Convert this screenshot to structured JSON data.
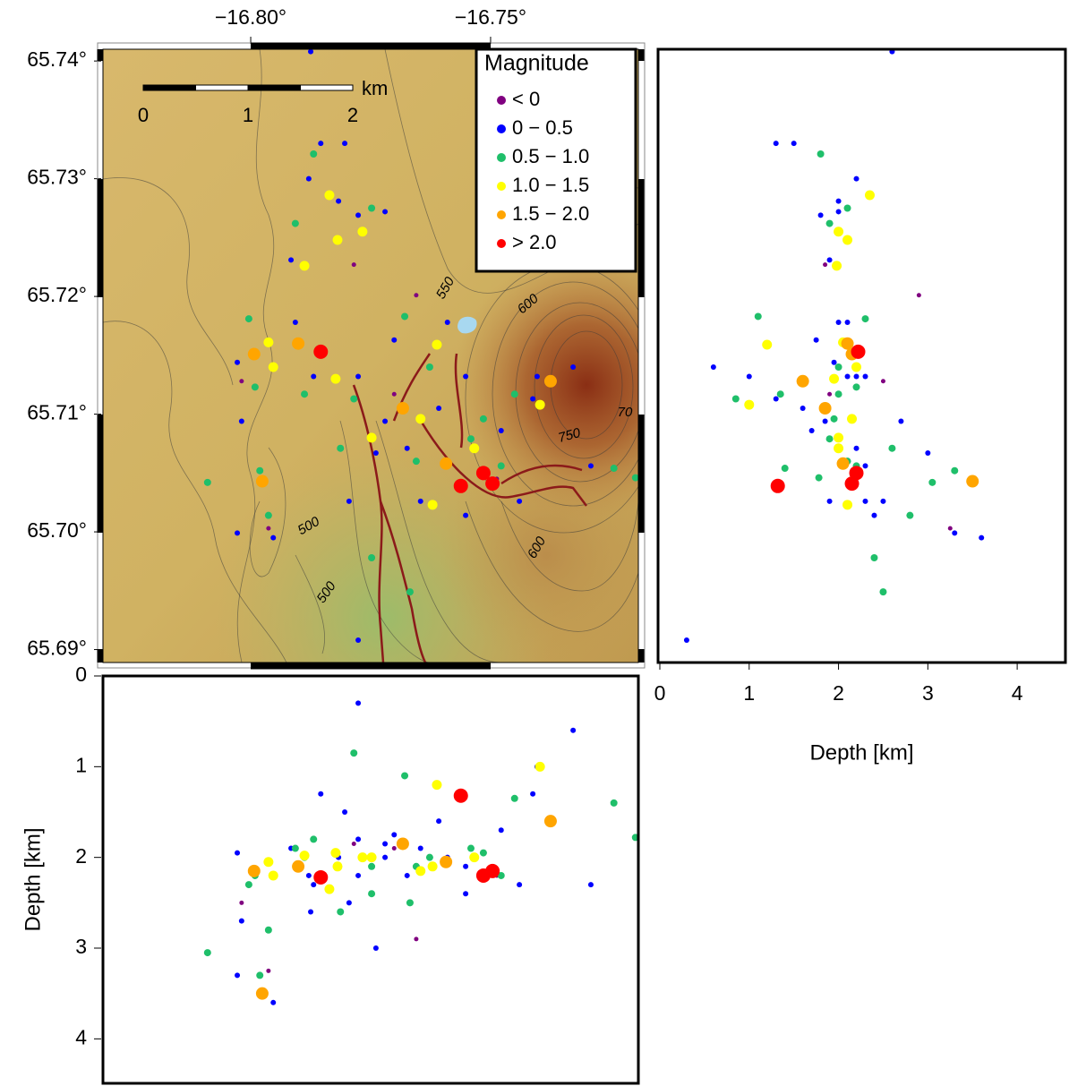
{
  "chart_data": [
    {
      "type": "scatter",
      "xlim": [
        -16.8308,
        -16.7192
      ],
      "ylim": [
        65.6889,
        65.741
      ],
      "xticks": [
        {
          "value": -16.8,
          "label": "−16.80°"
        },
        {
          "value": -16.75,
          "label": "−16.75°"
        }
      ],
      "yticks": [
        {
          "value": 65.69,
          "label": "65.69°"
        },
        {
          "value": 65.7,
          "label": "65.70°"
        },
        {
          "value": 65.71,
          "label": "65.71°"
        },
        {
          "value": 65.72,
          "label": "65.72°"
        },
        {
          "value": 65.73,
          "label": "65.73°"
        },
        {
          "value": 65.74,
          "label": "65.74°"
        }
      ],
      "legend": {
        "title": "Magnitude",
        "position": "top-right"
      },
      "scale_bar": {
        "labels": [
          "0",
          "1",
          "2"
        ],
        "unit": "km"
      },
      "contour_labels": [
        "550",
        "600",
        "500",
        "750",
        "70",
        "600",
        "500"
      ],
      "series": [
        {
          "name": "< 0",
          "color": "#800080",
          "x": [
            -16.7785,
            -16.7655,
            -16.8019,
            -16.7487,
            -16.7701,
            -16.7963
          ],
          "values": [
            65.7227,
            65.7201,
            65.7128,
            65.7045,
            65.7117,
            65.7003
          ]
        },
        {
          "name": "0 − 0.5",
          "color": "#0000ff",
          "x": [
            -16.7875,
            -16.7854,
            -16.7879,
            -16.7916,
            -16.7776,
            -16.772,
            -16.8028,
            -16.8019,
            -16.8028,
            -16.7953,
            -16.7907,
            -16.7776,
            -16.772,
            -16.7701,
            -16.759,
            -16.7552,
            -16.7478,
            -16.7403,
            -16.7328,
            -16.7291,
            -16.7646,
            -16.7552,
            -16.744,
            -16.7776,
            -16.7795,
            -16.7804,
            -16.7412,
            -16.7608,
            -16.7674,
            -16.7869,
            -16.7817,
            -16.7739
          ],
          "values": [
            65.7408,
            65.733,
            65.73,
            65.7231,
            65.7269,
            65.7272,
            65.7144,
            65.7094,
            65.6999,
            65.6995,
            65.7178,
            65.7132,
            65.7094,
            65.7163,
            65.7178,
            65.7132,
            65.7086,
            65.7132,
            65.714,
            65.7056,
            65.7026,
            65.7014,
            65.7026,
            65.6908,
            65.7026,
            65.733,
            65.7113,
            65.7105,
            65.7071,
            65.7132,
            65.7281,
            65.7067
          ]
        },
        {
          "name": "0.5 − 1.0",
          "color": "#1fbf6a",
          "x": [
            -16.7869,
            -16.7907,
            -16.7748,
            -16.8004,
            -16.7991,
            -16.7888,
            -16.7679,
            -16.7627,
            -16.7515,
            -16.7655,
            -16.7478,
            -16.7541,
            -16.7981,
            -16.7963,
            -16.809,
            -16.7748,
            -16.7668,
            -16.7243,
            -16.7198,
            -16.745,
            -16.7785,
            -16.7813
          ],
          "values": [
            65.7321,
            65.7262,
            65.7275,
            65.7181,
            65.7123,
            65.7117,
            65.7183,
            65.714,
            65.7096,
            65.706,
            65.7056,
            65.7079,
            65.7052,
            65.7014,
            65.7042,
            65.6978,
            65.6949,
            65.7054,
            65.7046,
            65.7117,
            65.7113,
            65.7071
          ]
        },
        {
          "name": "1.0 − 1.5",
          "color": "#ffff00",
          "x": [
            -16.7836,
            -16.7767,
            -16.7819,
            -16.7963,
            -16.7953,
            -16.7748,
            -16.7646,
            -16.7612,
            -16.7397,
            -16.7621,
            -16.7823,
            -16.7888,
            -16.7534
          ],
          "values": [
            65.7286,
            65.7255,
            65.7248,
            65.7161,
            65.714,
            65.708,
            65.7096,
            65.7159,
            65.7108,
            65.7023,
            65.713,
            65.7226,
            65.7071
          ]
        },
        {
          "name": "1.5 − 2.0",
          "color": "#ffa500",
          "x": [
            -16.7375,
            -16.7976,
            -16.7901,
            -16.7593,
            -16.7683,
            -16.7993
          ],
          "values": [
            65.7128,
            65.7043,
            65.716,
            65.7058,
            65.7105,
            65.7151
          ]
        },
        {
          "name": "> 2.0",
          "color": "#ff0000",
          "x": [
            -16.7854,
            -16.7515,
            -16.7496,
            -16.7562
          ],
          "values": [
            65.7153,
            65.705,
            65.7041,
            65.7039
          ]
        }
      ]
    },
    {
      "type": "scatter",
      "xlabel": "Depth [km]",
      "xlim": [
        -0.02,
        4.54
      ],
      "ylim": [
        65.6889,
        65.741
      ],
      "xticks": [
        0,
        1,
        2,
        3,
        4
      ],
      "series": [
        {
          "color": "#800080",
          "x": [
            1.85,
            2.9,
            2.5,
            2.2,
            1.9,
            3.25
          ],
          "values": [
            65.7227,
            65.7201,
            65.7128,
            65.7045,
            65.7117,
            65.7003
          ]
        },
        {
          "color": "#0000ff",
          "x": [
            2.6,
            1.3,
            2.2,
            1.9,
            1.8,
            2.0,
            1.95,
            2.7,
            3.3,
            3.6,
            2.1,
            2.2,
            1.85,
            1.75,
            2.0,
            2.1,
            1.7,
            1.0,
            0.6,
            2.3,
            1.9,
            2.4,
            2.3,
            0.3,
            2.5,
            1.5,
            1.3,
            1.6,
            2.2,
            2.3,
            2.0,
            3.0
          ],
          "values": [
            65.7408,
            65.733,
            65.73,
            65.7231,
            65.7269,
            65.7272,
            65.7144,
            65.7094,
            65.6999,
            65.6995,
            65.7178,
            65.7132,
            65.7094,
            65.7163,
            65.7178,
            65.7132,
            65.7086,
            65.7132,
            65.714,
            65.7056,
            65.7026,
            65.7014,
            65.7026,
            65.6908,
            65.7026,
            65.733,
            65.7113,
            65.7105,
            65.7071,
            65.7132,
            65.7281,
            65.7067
          ]
        },
        {
          "color": "#1fbf6a",
          "x": [
            1.8,
            1.9,
            2.1,
            2.3,
            2.2,
            2.0,
            1.1,
            2.0,
            1.95,
            2.1,
            2.2,
            1.9,
            3.3,
            2.8,
            3.05,
            2.4,
            2.5,
            1.4,
            1.78,
            1.35,
            0.85,
            2.6
          ],
          "values": [
            65.7321,
            65.7262,
            65.7275,
            65.7181,
            65.7123,
            65.7117,
            65.7183,
            65.714,
            65.7096,
            65.706,
            65.7056,
            65.7079,
            65.7052,
            65.7014,
            65.7042,
            65.6978,
            65.6949,
            65.7054,
            65.7046,
            65.7117,
            65.7113,
            65.7071
          ]
        },
        {
          "color": "#ffff00",
          "x": [
            2.35,
            2.0,
            2.1,
            2.05,
            2.2,
            2.0,
            2.15,
            1.2,
            1.0,
            2.1,
            1.95,
            1.98,
            2.0
          ],
          "values": [
            65.7286,
            65.7255,
            65.7248,
            65.7161,
            65.714,
            65.708,
            65.7096,
            65.7159,
            65.7108,
            65.7023,
            65.713,
            65.7226,
            65.7071
          ]
        },
        {
          "color": "#ffa500",
          "x": [
            1.6,
            3.5,
            2.1,
            2.05,
            1.85,
            2.15
          ],
          "values": [
            65.7128,
            65.7043,
            65.716,
            65.7058,
            65.7105,
            65.7151
          ]
        },
        {
          "color": "#ff0000",
          "x": [
            2.22,
            2.2,
            2.15,
            1.32
          ],
          "values": [
            65.7153,
            65.705,
            65.7041,
            65.7039
          ]
        }
      ]
    },
    {
      "type": "scatter",
      "ylabel": "Depth [km]",
      "xlim": [
        -16.8308,
        -16.7192
      ],
      "ylim": [
        4.49,
        0
      ],
      "yticks": [
        0,
        1,
        2,
        3,
        4
      ],
      "series": [
        {
          "color": "#800080",
          "x": [
            -16.7785,
            -16.7655,
            -16.8019,
            -16.7487,
            -16.7701,
            -16.7963
          ],
          "values": [
            1.85,
            2.9,
            2.5,
            2.2,
            1.9,
            3.25
          ]
        },
        {
          "color": "#0000ff",
          "x": [
            -16.7875,
            -16.7854,
            -16.7879,
            -16.7916,
            -16.7776,
            -16.772,
            -16.8028,
            -16.8019,
            -16.8028,
            -16.7953,
            -16.7907,
            -16.7776,
            -16.772,
            -16.7701,
            -16.759,
            -16.7552,
            -16.7478,
            -16.7403,
            -16.7328,
            -16.7291,
            -16.7646,
            -16.7552,
            -16.744,
            -16.7776,
            -16.7795,
            -16.7804,
            -16.7412,
            -16.7608,
            -16.7674,
            -16.7869,
            -16.7817,
            -16.7739
          ],
          "values": [
            2.6,
            1.3,
            2.2,
            1.9,
            1.8,
            2.0,
            1.95,
            2.7,
            3.3,
            3.6,
            2.1,
            2.2,
            1.85,
            1.75,
            2.0,
            2.1,
            1.7,
            1.0,
            0.6,
            2.3,
            1.9,
            2.4,
            2.3,
            0.3,
            2.5,
            1.5,
            1.3,
            1.6,
            2.2,
            2.3,
            2.0,
            3.0
          ]
        },
        {
          "color": "#1fbf6a",
          "x": [
            -16.7869,
            -16.7907,
            -16.7748,
            -16.8004,
            -16.7991,
            -16.7888,
            -16.7679,
            -16.7627,
            -16.7515,
            -16.7655,
            -16.7478,
            -16.7541,
            -16.7981,
            -16.7963,
            -16.809,
            -16.7748,
            -16.7668,
            -16.7243,
            -16.7198,
            -16.745,
            -16.7785,
            -16.7813
          ],
          "values": [
            1.8,
            1.9,
            2.1,
            2.3,
            2.2,
            2.0,
            1.1,
            2.0,
            1.95,
            2.1,
            2.2,
            1.9,
            3.3,
            2.8,
            3.05,
            2.4,
            2.5,
            1.4,
            1.78,
            1.35,
            0.85,
            2.6
          ]
        },
        {
          "color": "#ffff00",
          "x": [
            -16.7836,
            -16.7767,
            -16.7819,
            -16.7963,
            -16.7953,
            -16.7748,
            -16.7646,
            -16.7612,
            -16.7397,
            -16.7621,
            -16.7823,
            -16.7888,
            -16.7534
          ],
          "values": [
            2.35,
            2.0,
            2.1,
            2.05,
            2.2,
            2.0,
            2.15,
            1.2,
            1.0,
            2.1,
            1.95,
            1.98,
            2.0
          ]
        },
        {
          "color": "#ffa500",
          "x": [
            -16.7375,
            -16.7976,
            -16.7901,
            -16.7593,
            -16.7683,
            -16.7993
          ],
          "values": [
            1.6,
            3.5,
            2.1,
            2.05,
            1.85,
            2.15
          ]
        },
        {
          "color": "#ff0000",
          "x": [
            -16.7854,
            -16.7515,
            -16.7496,
            -16.7562
          ],
          "values": [
            2.22,
            2.2,
            2.15,
            1.32
          ]
        }
      ]
    }
  ]
}
